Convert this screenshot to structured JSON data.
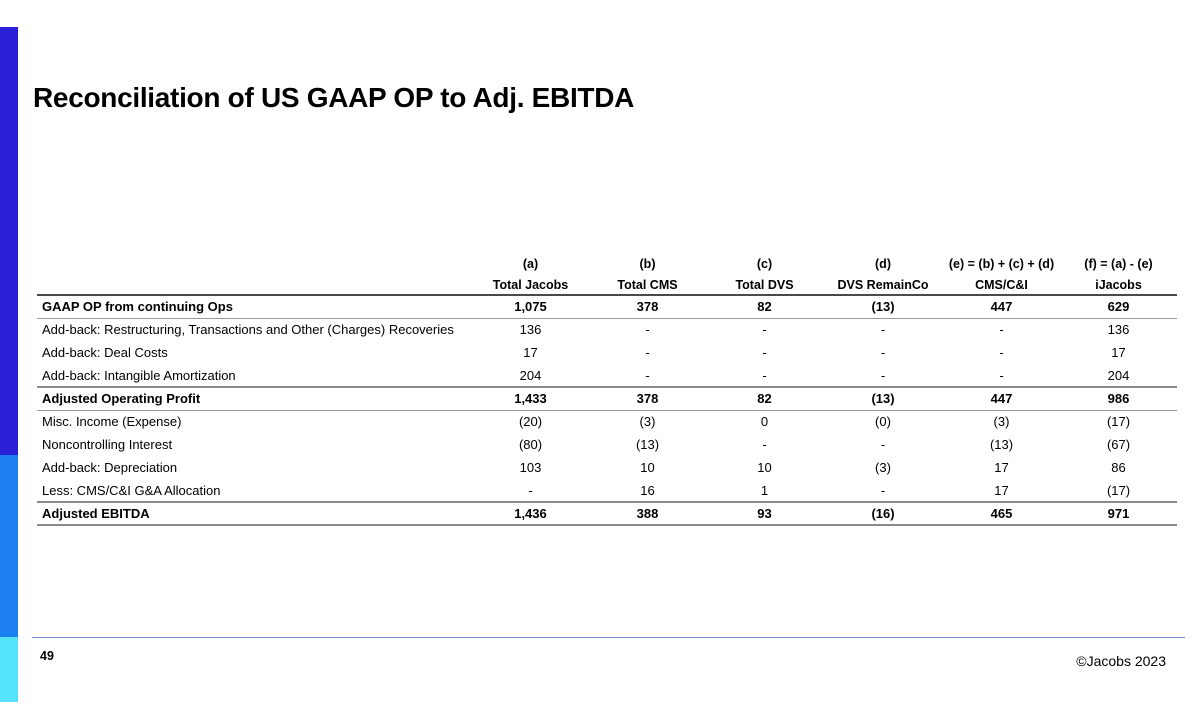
{
  "slide": {
    "title": "Reconciliation of US GAAP OP to Adj. EBITDA",
    "page_number": "49",
    "copyright": "©Jacobs 2023"
  },
  "table": {
    "formula_headers": [
      "(a)",
      "(b)",
      "(c)",
      "(d)",
      "(e) = (b) + (c) + (d)",
      "(f) = (a) - (e)"
    ],
    "column_headers": [
      "Total Jacobs",
      "Total CMS",
      "Total DVS",
      "DVS RemainCo",
      "CMS/C&I",
      "iJacobs"
    ],
    "rows": [
      {
        "label": "GAAP OP from continuing Ops",
        "bold": true,
        "values": [
          "1,075",
          "378",
          "82",
          "(13)",
          "447",
          "629"
        ]
      },
      {
        "label": "Add-back: Restructuring, Transactions and Other (Charges) Recoveries",
        "bold": false,
        "values": [
          "136",
          "-",
          "-",
          "-",
          "-",
          "136"
        ]
      },
      {
        "label": "Add-back: Deal Costs",
        "bold": false,
        "values": [
          "17",
          "-",
          "-",
          "-",
          "-",
          "17"
        ]
      },
      {
        "label": "Add-back: Intangible Amortization",
        "bold": false,
        "values": [
          "204",
          "-",
          "-",
          "-",
          "-",
          "204"
        ]
      },
      {
        "label": "Adjusted Operating Profit",
        "bold": true,
        "values": [
          "1,433",
          "378",
          "82",
          "(13)",
          "447",
          "986"
        ]
      },
      {
        "label": "Misc. Income (Expense)",
        "bold": false,
        "values": [
          "(20)",
          "(3)",
          "0",
          "(0)",
          "(3)",
          "(17)"
        ]
      },
      {
        "label": "Noncontrolling Interest",
        "bold": false,
        "values": [
          "(80)",
          "(13)",
          "-",
          "-",
          "(13)",
          "(67)"
        ]
      },
      {
        "label": "Add-back: Depreciation",
        "bold": false,
        "values": [
          "103",
          "10",
          "10",
          "(3)",
          "17",
          "86"
        ]
      },
      {
        "label": "Less: CMS/C&I G&A Allocation",
        "bold": false,
        "values": [
          "-",
          "16",
          "1",
          "-",
          "17",
          "(17)"
        ]
      },
      {
        "label": "Adjusted EBITDA",
        "bold": true,
        "values": [
          "1,436",
          "388",
          "93",
          "(16)",
          "465",
          "971"
        ]
      }
    ]
  },
  "colors": {
    "bar_top": "#2a1fd6",
    "bar_middle": "#1b7ff0",
    "bar_bottom": "#55e3fb",
    "footer_line": "#8286dc"
  }
}
